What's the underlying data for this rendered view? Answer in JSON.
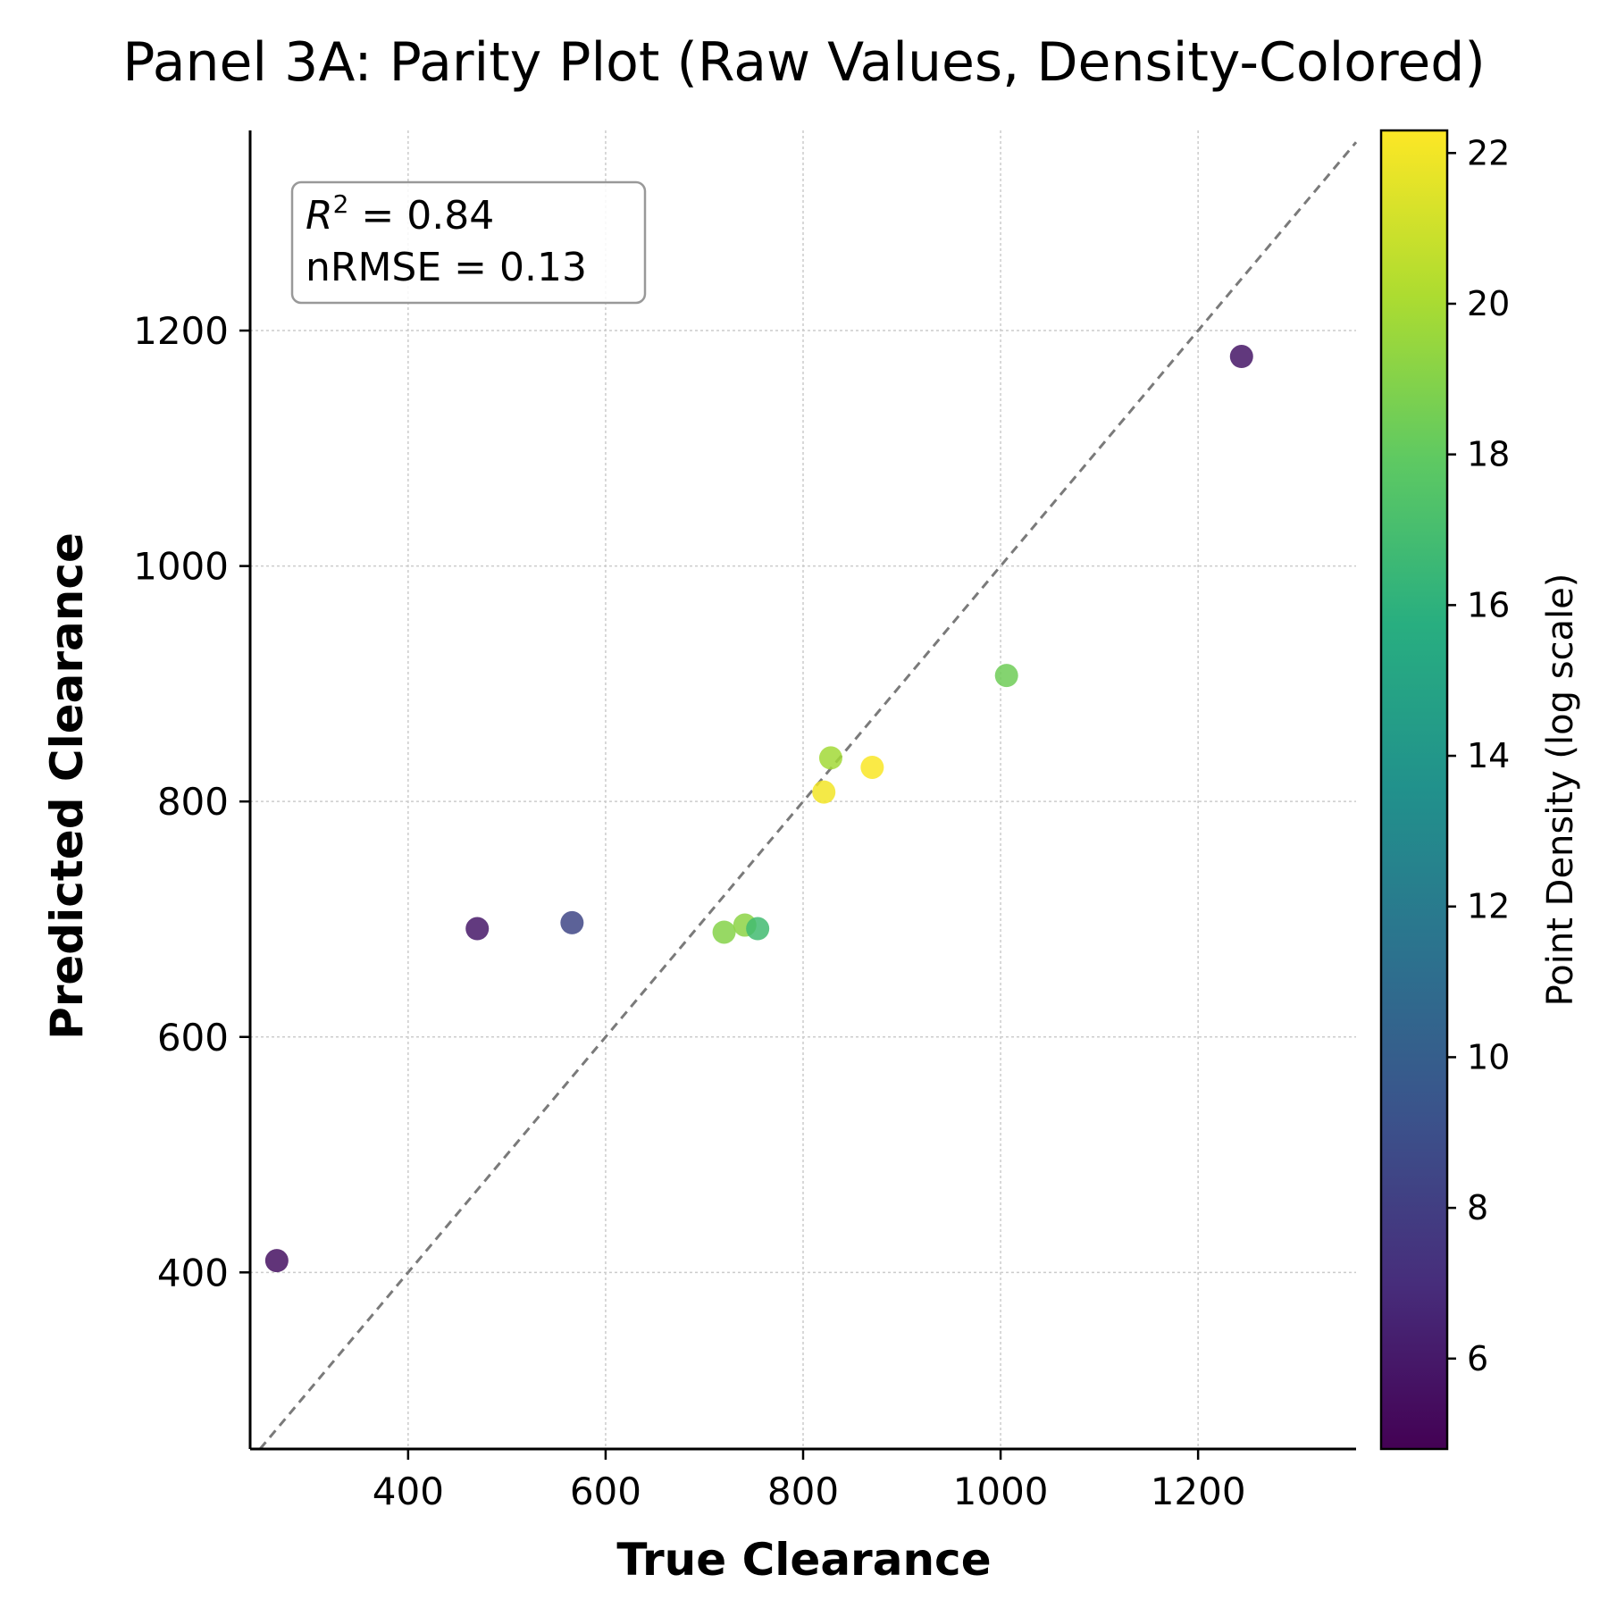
{
  "chart_data": {
    "type": "scatter",
    "title": "Panel 3A: Parity Plot (Raw Values, Density-Colored)",
    "xlabel": "True Clearance",
    "ylabel": "Predicted Clearance",
    "xlim": [
      240,
      1360
    ],
    "ylim": [
      250,
      1370
    ],
    "x_ticks": [
      400,
      600,
      800,
      1000,
      1200
    ],
    "y_ticks": [
      400,
      600,
      800,
      1000,
      1200
    ],
    "grid": true,
    "identity_line": true,
    "colormap": "viridis",
    "colorbar": {
      "label": "Point Density (log scale)",
      "range": [
        4.8,
        22.3
      ],
      "ticks": [
        6,
        8,
        10,
        12,
        14,
        16,
        18,
        20,
        22
      ]
    },
    "annotation": {
      "r2_label": "R",
      "r2_sup": "2",
      "r2_value": " = 0.84",
      "nrmse": "nRMSE = 0.13",
      "placement": "top-left"
    },
    "points": [
      {
        "x": 267,
        "y": 410,
        "density": 5.6
      },
      {
        "x": 470,
        "y": 692,
        "density": 5.9
      },
      {
        "x": 566,
        "y": 697,
        "density": 8.5
      },
      {
        "x": 720,
        "y": 689,
        "density": 19.0
      },
      {
        "x": 741,
        "y": 695,
        "density": 19.2
      },
      {
        "x": 754,
        "y": 692,
        "density": 16.8
      },
      {
        "x": 821,
        "y": 808,
        "density": 22.0
      },
      {
        "x": 828,
        "y": 837,
        "density": 19.8
      },
      {
        "x": 870,
        "y": 829,
        "density": 22.2
      },
      {
        "x": 1006,
        "y": 907,
        "density": 18.4
      },
      {
        "x": 1244,
        "y": 1178,
        "density": 5.8
      }
    ]
  }
}
